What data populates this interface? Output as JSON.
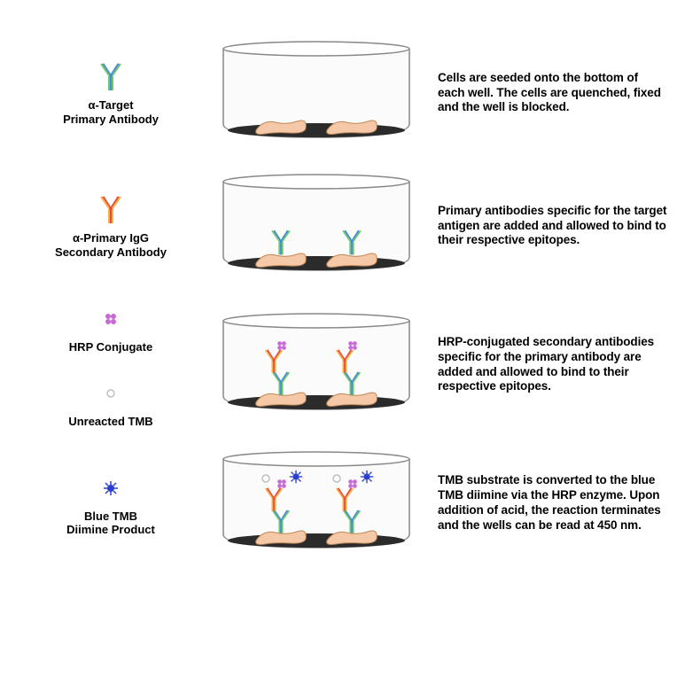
{
  "type": "infographic",
  "background_color": "#ffffff",
  "text_color": "#000000",
  "font_family": "Arial",
  "label_fontsize": 13,
  "desc_fontsize": 13.5,
  "colors": {
    "well_fill": "#f5f5f5",
    "well_stroke": "#606060",
    "well_bottom": "#2b2b2b",
    "cell_fill": "#f5c9a8",
    "cell_stroke": "#c08858",
    "primary_heavy": "#4a8bd8",
    "primary_light": "#6ec96e",
    "secondary_heavy": "#e84c3d",
    "secondary_light": "#f2b34a",
    "hrp": "#c76bd4",
    "tmb_unreacted": "#bfbfbf",
    "tmb_blue": "#2a3fd0"
  },
  "legend": [
    {
      "label": "α-Target\nPrimary Antibody"
    },
    {
      "label": "α-Primary IgG\nSecondary Antibody"
    },
    {
      "label": "HRP Conjugate"
    },
    {
      "label": "Unreacted TMB"
    },
    {
      "label": "Blue TMB\nDiimine Product"
    }
  ],
  "steps": [
    {
      "desc": "Cells are seeded onto the bottom of each well. The cells are quenched, fixed and the well is blocked."
    },
    {
      "desc": "Primary antibodies specific for the target antigen are added and allowed to bind to their respective epitopes."
    },
    {
      "desc": "HRP-conjugated secondary antibodies specific for the primary antibody are added and allowed to bind to their respective epitopes."
    },
    {
      "desc": "TMB substrate is converted to the blue TMB diimine via the HRP enzyme. Upon addition of acid, the reaction terminates and the wells can be read at 450 nm."
    }
  ]
}
